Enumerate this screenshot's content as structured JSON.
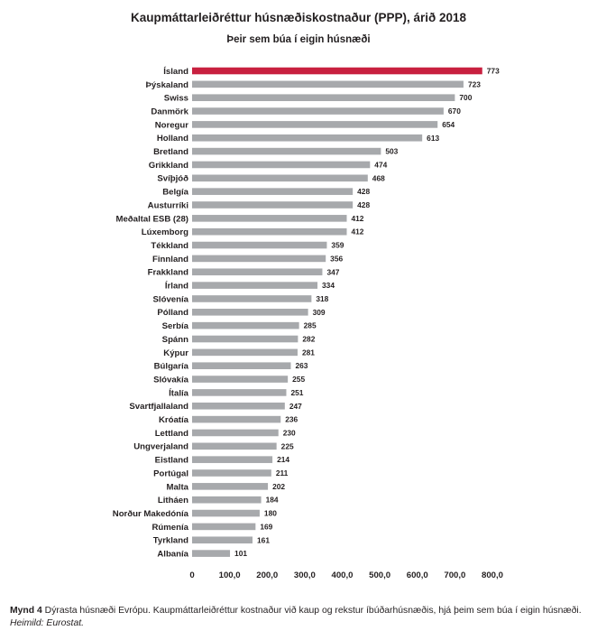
{
  "chart_data": {
    "type": "bar",
    "orientation": "horizontal",
    "title": "Kaupmáttarleiðréttur húsnæðiskostnaður (PPP), árið 2018",
    "subtitle_prefix": "Þeir sem búa í ",
    "subtitle_emphasis": "eigin húsnæði",
    "categories": [
      "Ísland",
      "Þýskaland",
      "Swiss",
      "Danmörk",
      "Noregur",
      "Holland",
      "Bretland",
      "Grikkland",
      "Svíþjóð",
      "Belgía",
      "Austurríki",
      "Meðaltal ESB (28)",
      "Lúxemborg",
      "Tékkland",
      "Finnland",
      "Frakkland",
      "Írland",
      "Slóvenía",
      "Pólland",
      "Serbía",
      "Spánn",
      "Kýpur",
      "Búlgaría",
      "Slóvakía",
      "Ítalía",
      "Svartfjallaland",
      "Króatía",
      "Lettland",
      "Ungverjaland",
      "Eistland",
      "Portúgal",
      "Malta",
      "Litháen",
      "Norður Makedónía",
      "Rúmenía",
      "Tyrkland",
      "Albanía"
    ],
    "values": [
      773,
      723,
      700,
      670,
      654,
      613,
      503,
      474,
      468,
      428,
      428,
      412,
      412,
      359,
      356,
      347,
      334,
      318,
      309,
      285,
      282,
      281,
      263,
      255,
      251,
      247,
      236,
      230,
      225,
      214,
      211,
      202,
      184,
      180,
      169,
      161,
      101
    ],
    "highlight_index": 0,
    "colors": {
      "bar": "#a7a9ac",
      "highlight": "#c8203f"
    },
    "xlim": [
      0,
      800
    ],
    "xticks": [
      "0",
      "100,0",
      "200,0",
      "300,0",
      "400,0",
      "500,0",
      "600,0",
      "700,0",
      "800,0"
    ],
    "xlabel": "",
    "ylabel": "",
    "grid": false,
    "legend": "none"
  },
  "caption": {
    "figure_label": "Mynd 4",
    "text": " Dýrasta húsnæði Evrópu. Kaupmáttarleiðréttur kostnaður við kaup og rekstur íbúðarhúsnæðis, hjá þeim sem búa í eigin húsnæði.",
    "source": "Heimild: Eurostat."
  }
}
